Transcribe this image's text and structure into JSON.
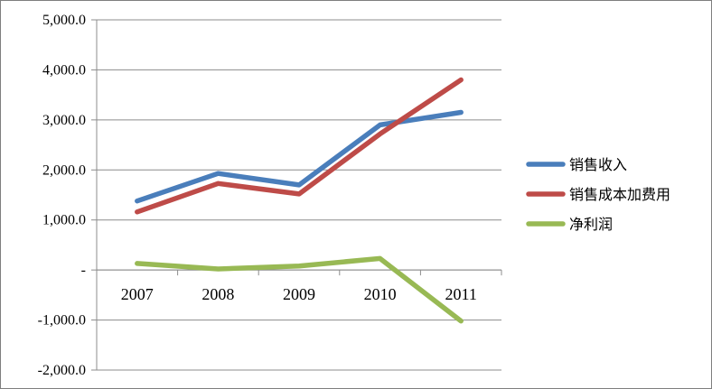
{
  "chart_data": {
    "type": "line",
    "categories": [
      "2007",
      "2008",
      "2009",
      "2010",
      "2011"
    ],
    "ylim": [
      -2000,
      5000
    ],
    "yticks": [
      -2000,
      -1000,
      0,
      1000,
      2000,
      3000,
      4000,
      5000
    ],
    "ytick_labels": [
      "-2,000.0",
      "-1,000.0",
      "-",
      "1,000.0",
      "2,000.0",
      "3,000.0",
      "4,000.0",
      "5,000.0"
    ],
    "grid": true,
    "legend_position": "right",
    "series": [
      {
        "name": "销售收入",
        "color": "#4a7ebb",
        "values": [
          1380,
          1930,
          1700,
          2900,
          3150
        ]
      },
      {
        "name": "销售成本加费用",
        "color": "#be4b48",
        "values": [
          1160,
          1730,
          1520,
          2720,
          3800
        ]
      },
      {
        "name": "净利润",
        "color": "#98b954",
        "values": [
          130,
          20,
          80,
          230,
          -1020
        ]
      }
    ]
  }
}
